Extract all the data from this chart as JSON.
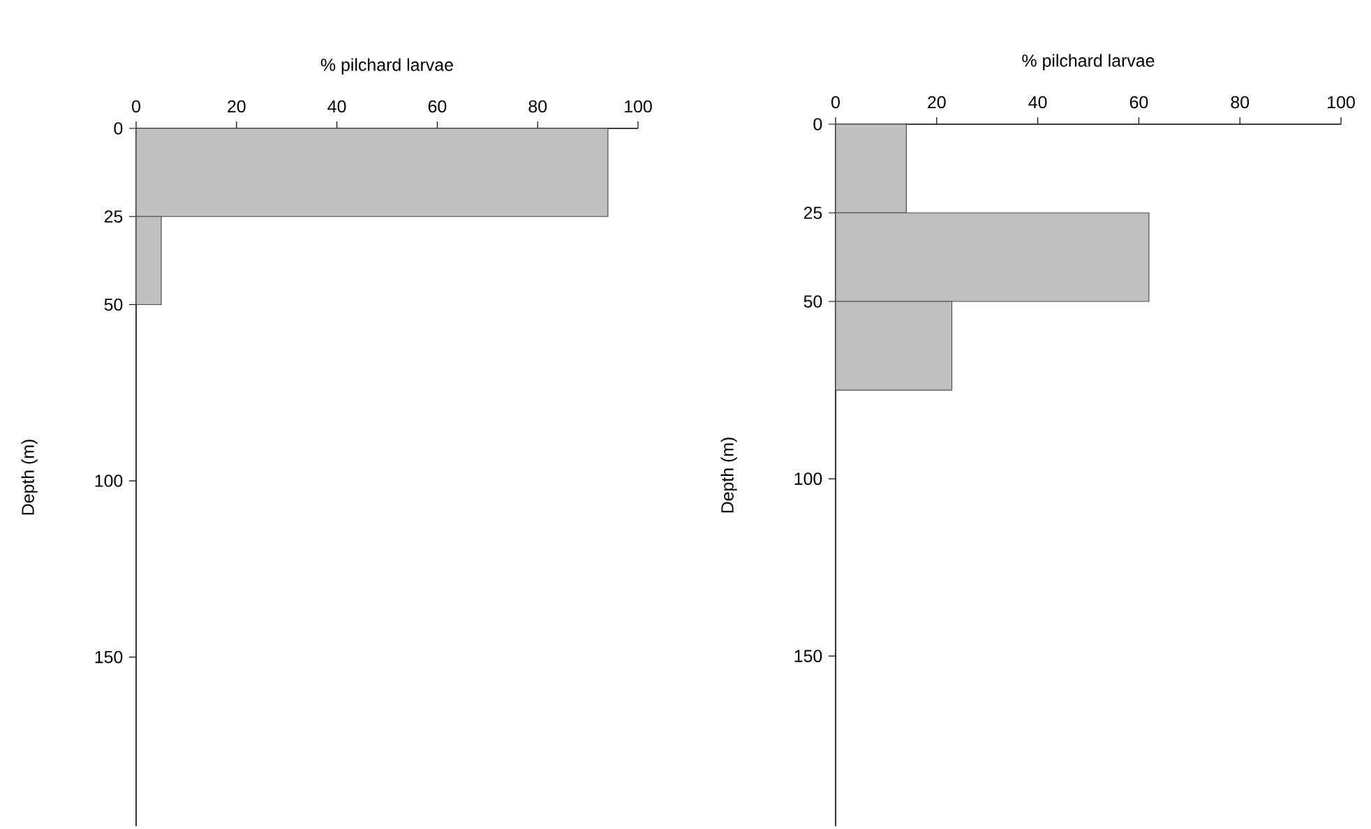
{
  "chart_data": [
    {
      "type": "histogram",
      "orientation": "horizontal",
      "xlabel": "% pilchard larvae",
      "ylabel": "Depth (m)",
      "bins": [
        0,
        25,
        50
      ],
      "values": [
        94,
        5
      ],
      "color": "#c0c0c0",
      "xlim": [
        0,
        100
      ],
      "xticks": [
        0,
        20,
        40,
        60,
        80,
        100
      ],
      "ylim": [
        198,
        0
      ],
      "yticks": [
        0,
        25,
        50,
        100,
        150
      ]
    },
    {
      "type": "histogram",
      "orientation": "horizontal",
      "xlabel": "% pilchard larvae",
      "ylabel": "Depth (m)",
      "bins": [
        0,
        25,
        50,
        75
      ],
      "values": [
        14,
        62,
        23
      ],
      "color": "#c0c0c0",
      "xlim": [
        0,
        100
      ],
      "xticks": [
        0,
        20,
        40,
        60,
        80,
        100
      ],
      "ylim": [
        198,
        0
      ],
      "yticks": [
        0,
        25,
        50,
        100,
        150
      ]
    }
  ]
}
